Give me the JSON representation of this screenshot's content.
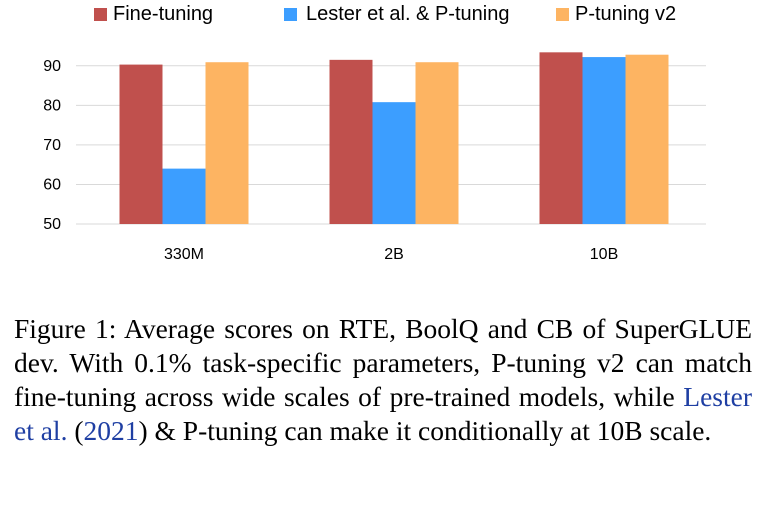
{
  "chart_data": {
    "type": "bar",
    "categories": [
      "330M",
      "2B",
      "10B"
    ],
    "series": [
      {
        "name": "Fine-tuning",
        "color": "#c0504d",
        "values": [
          90.3,
          91.5,
          93.4
        ]
      },
      {
        "name": "Lester et al. & P-tuning",
        "color": "#3c9eff",
        "values": [
          64.0,
          80.8,
          92.2
        ]
      },
      {
        "name": "P-tuning v2",
        "color": "#fdb462",
        "values": [
          90.9,
          90.9,
          92.8
        ]
      }
    ],
    "ylim": [
      50,
      95
    ],
    "yticks": [
      "50",
      "60",
      "70",
      "80",
      "90"
    ],
    "grid": true,
    "legend": "top"
  },
  "caption": {
    "prefix": "Figure 1:  Average scores on RTE, BoolQ and CB of SuperGLUE dev.  With 0.1% task-specific parameters, P-tuning v2 can match fine-tuning across wide scales of pre-trained models, while ",
    "cite_author": "Lester et al.",
    "cite_open": " (",
    "cite_year": "2021",
    "cite_close": ")",
    "suffix": " & P-tuning can make it conditionally at 10B scale."
  }
}
